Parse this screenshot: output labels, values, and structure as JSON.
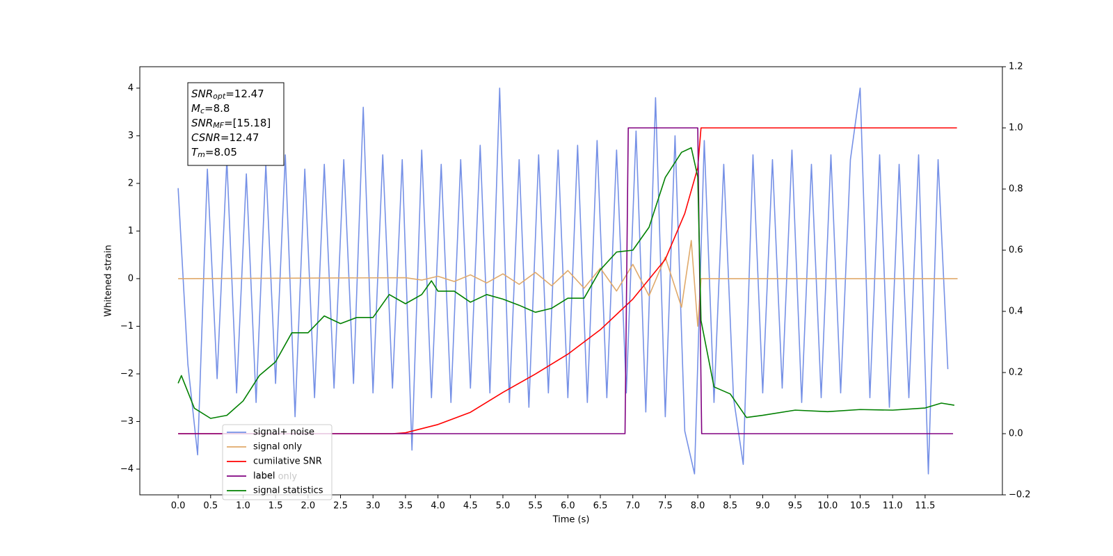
{
  "chart_data": {
    "type": "line",
    "xlabel": "Time (s)",
    "ylabel": "Whitened strain",
    "xlim": [
      -0.59,
      12.69
    ],
    "ylim": [
      -4.54,
      4.45
    ],
    "y2lim": [
      -0.2,
      1.2
    ],
    "xticks": [
      {
        "value": 0,
        "label": "0.0"
      },
      0.5,
      {
        "value": 1,
        "label": "1.0"
      },
      1.5,
      {
        "value": 2,
        "label": "2.0"
      },
      2.5,
      {
        "value": 3,
        "label": "3.0"
      },
      3.5,
      {
        "value": 4,
        "label": "4.0"
      },
      4.5,
      {
        "value": 5,
        "label": "5.0"
      },
      5.5,
      {
        "value": 6,
        "label": "6.0"
      },
      6.5,
      {
        "value": 7,
        "label": "7.0"
      },
      7.5,
      {
        "value": 8,
        "label": "8.0"
      },
      8.5,
      {
        "value": 9,
        "label": "9.0"
      },
      9.5,
      {
        "value": 10,
        "label": "10.0"
      },
      10.5,
      {
        "value": 11,
        "label": "11.0"
      },
      11.5
    ],
    "yticks": [
      {
        "value": -4,
        "label": "−4"
      },
      {
        "value": -3,
        "label": "−3"
      },
      {
        "value": -2,
        "label": "−2"
      },
      {
        "value": -1,
        "label": "−1"
      },
      0,
      1,
      2,
      3,
      4
    ],
    "y2ticks": [
      {
        "value": -0.2,
        "label": "−0.2"
      },
      {
        "value": 0,
        "label": "0.0"
      },
      0.2,
      0.4,
      0.6,
      0.8,
      {
        "value": 1,
        "label": "1.0"
      },
      1.2
    ],
    "annotation": [
      {
        "name": "SNR",
        "sub": "opt",
        "text": "=12.47"
      },
      {
        "name": "M",
        "sub": "c",
        "text": "=8.8"
      },
      {
        "name": "SNR",
        "sub": "MF",
        "text": "=[15.18]"
      },
      {
        "name": "CSNR",
        "text": "=12.47"
      },
      {
        "name": "T",
        "sub": "m",
        "text": "=8.05"
      }
    ],
    "legend_extra": "label only",
    "series": [
      {
        "name": "signal+ noise",
        "color": "#7590e6",
        "x": [
          0,
          0.15,
          0.3,
          0.45,
          0.6,
          0.75,
          0.9,
          1.05,
          1.2,
          1.35,
          1.5,
          1.65,
          1.8,
          1.95,
          2.1,
          2.25,
          2.4,
          2.55,
          2.7,
          2.85,
          3,
          3.15,
          3.3,
          3.45,
          3.6,
          3.75,
          3.9,
          4.05,
          4.2,
          4.35,
          4.5,
          4.65,
          4.8,
          4.95,
          5.1,
          5.25,
          5.4,
          5.55,
          5.7,
          5.85,
          6,
          6.15,
          6.3,
          6.45,
          6.6,
          6.75,
          6.9,
          7.05,
          7.2,
          7.35,
          7.5,
          7.65,
          7.8,
          7.95,
          8.1,
          8.25,
          8.4,
          8.55,
          8.7,
          8.85,
          9,
          9.15,
          9.3,
          9.45,
          9.6,
          9.75,
          9.9,
          10.05,
          10.2,
          10.35,
          10.5,
          10.65,
          10.8,
          10.95,
          11.1,
          11.25,
          11.4,
          11.55,
          11.7,
          11.85
        ],
        "values": [
          1.9,
          -1.8,
          -3.7,
          2.3,
          -2.1,
          2.5,
          -2.4,
          2.2,
          -2.6,
          2.4,
          -2.2,
          2.6,
          -2.9,
          2.3,
          -2.5,
          2.4,
          -2.3,
          2.5,
          -2.2,
          3.6,
          -2.4,
          2.6,
          -2.3,
          2.5,
          -3.6,
          2.7,
          -2.5,
          2.4,
          -2.6,
          2.5,
          -2.3,
          2.8,
          -2.4,
          4.0,
          -2.6,
          2.5,
          -2.7,
          2.6,
          -2.4,
          2.7,
          -2.5,
          2.8,
          -2.6,
          2.9,
          -2.5,
          2.7,
          -2.4,
          3.1,
          -2.8,
          3.8,
          -2.9,
          3.0,
          -3.2,
          -4.1,
          2.9,
          -2.6,
          2.4,
          -2.5,
          -3.9,
          2.6,
          -2.4,
          2.5,
          -2.3,
          2.7,
          -2.6,
          2.4,
          -2.5,
          2.6,
          -2.4,
          2.5,
          4.0,
          -2.5,
          2.6,
          -2.7,
          2.4,
          -2.5,
          2.6,
          -4.1,
          2.5,
          -1.9
        ]
      },
      {
        "name": "signal only",
        "color": "#e0a96a",
        "x": [
          0,
          3.5,
          3.75,
          4,
          4.25,
          4.5,
          4.75,
          5,
          5.25,
          5.5,
          5.75,
          6,
          6.25,
          6.5,
          6.75,
          7,
          7.25,
          7.5,
          7.75,
          7.9,
          8,
          8.05,
          12
        ],
        "values": [
          0,
          0.02,
          -0.03,
          0.05,
          -0.06,
          0.08,
          -0.09,
          0.1,
          -0.12,
          0.13,
          -0.15,
          0.17,
          -0.2,
          0.22,
          -0.26,
          0.3,
          -0.36,
          0.45,
          -0.6,
          0.8,
          -1.0,
          0,
          0
        ]
      },
      {
        "name": "cumilative SNR",
        "color": "#ff0000",
        "axis": "y2",
        "x": [
          0,
          3.3,
          3.5,
          4,
          4.5,
          5,
          5.5,
          6,
          6.5,
          7,
          7.5,
          7.8,
          8,
          8.05,
          11.99
        ],
        "values": [
          0,
          0,
          0.003,
          0.03,
          0.07,
          0.135,
          0.195,
          0.26,
          0.34,
          0.44,
          0.57,
          0.72,
          0.87,
          1.0,
          1.0
        ]
      },
      {
        "name": "label",
        "color": "#800080",
        "axis": "y2",
        "x": [
          0,
          6.88,
          6.93,
          8.0,
          8.06,
          11.93
        ],
        "values": [
          0,
          0,
          1,
          1,
          0,
          0
        ]
      },
      {
        "name": "signal statistics",
        "color": "#008000",
        "axis": "y2",
        "x": [
          0,
          0.05,
          0.25,
          0.5,
          0.75,
          1,
          1.25,
          1.5,
          1.75,
          2,
          2.25,
          2.5,
          2.75,
          3,
          3.25,
          3.5,
          3.75,
          3.9,
          4,
          4.25,
          4.5,
          4.75,
          5,
          5.25,
          5.5,
          5.75,
          6,
          6.25,
          6.5,
          6.75,
          7,
          7.25,
          7.5,
          7.75,
          7.9,
          8,
          8.05,
          8.25,
          8.5,
          8.75,
          9,
          9.5,
          10,
          10.5,
          11,
          11.5,
          11.75,
          11.95
        ],
        "values": [
          0.165,
          0.19,
          0.083,
          0.05,
          0.06,
          0.107,
          0.19,
          0.235,
          0.33,
          0.33,
          0.385,
          0.36,
          0.38,
          0.38,
          0.455,
          0.425,
          0.455,
          0.5,
          0.466,
          0.466,
          0.43,
          0.455,
          0.44,
          0.42,
          0.397,
          0.41,
          0.443,
          0.443,
          0.536,
          0.594,
          0.6,
          0.675,
          0.838,
          0.92,
          0.935,
          0.84,
          0.37,
          0.153,
          0.13,
          0.053,
          0.06,
          0.077,
          0.072,
          0.079,
          0.077,
          0.084,
          0.1,
          0.093
        ]
      }
    ]
  }
}
